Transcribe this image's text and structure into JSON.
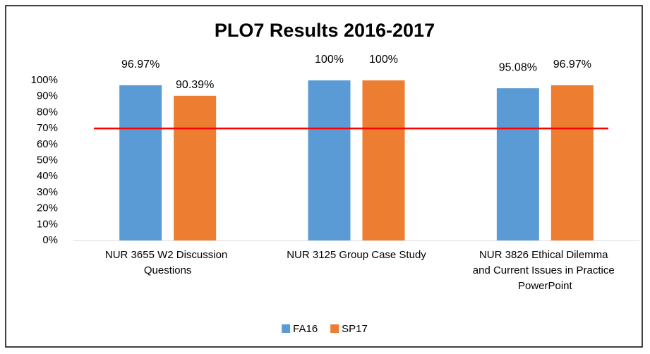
{
  "chart_data": {
    "type": "bar",
    "title": "PLO7 Results 2016-2017",
    "categories": [
      "NUR 3655 W2 Discussion Questions",
      "NUR 3125 Group Case Study",
      "NUR 3826 Ethical Dilemma and Current Issues in Practice PowerPoint"
    ],
    "series": [
      {
        "name": "FA16",
        "color": "#5b9bd5",
        "values": [
          96.97,
          100,
          95.08
        ],
        "value_labels": [
          "96.97%",
          "100%",
          "95.08%"
        ]
      },
      {
        "name": "SP17",
        "color": "#ed7d31",
        "values": [
          90.39,
          100,
          96.97
        ],
        "value_labels": [
          "90.39%",
          "100%",
          "96.97%"
        ]
      }
    ],
    "reference_line": {
      "value": 70,
      "color": "#ff0000"
    },
    "ylim": [
      0,
      100
    ],
    "yticks": [
      {
        "value": 0,
        "label": "0%"
      },
      {
        "value": 10,
        "label": "10%"
      },
      {
        "value": 20,
        "label": "20%"
      },
      {
        "value": 30,
        "label": "30%"
      },
      {
        "value": 40,
        "label": "40%"
      },
      {
        "value": 50,
        "label": "50%"
      },
      {
        "value": 60,
        "label": "60%"
      },
      {
        "value": 70,
        "label": "70%"
      },
      {
        "value": 80,
        "label": "80%"
      },
      {
        "value": 90,
        "label": "90%"
      },
      {
        "value": 100,
        "label": "100%"
      }
    ],
    "grid": false,
    "legend": "bottom"
  }
}
